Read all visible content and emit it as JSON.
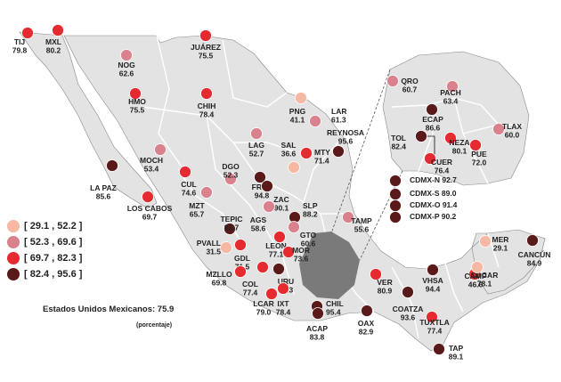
{
  "colors": {
    "land": "#e3e3e3",
    "border": "#ffffff",
    "outline": "#888888",
    "center_region": "#7a7a7a",
    "bins": [
      "#f6b8a2",
      "#d9828e",
      "#e52b2f",
      "#5a1a1a"
    ]
  },
  "legend": {
    "items": [
      {
        "label": "[ 29.1 , 52.2 ]",
        "bin": 0
      },
      {
        "label": "[ 52.3 , 69.6 ]",
        "bin": 1
      },
      {
        "label": "[ 69.7 , 82.3 ]",
        "bin": 2
      },
      {
        "label": "[ 82.4 , 95.6 ]",
        "bin": 3
      }
    ]
  },
  "national": {
    "text": "Estados Unidos Mexicanos: 75.9"
  },
  "unit": {
    "text": "(porcentaje)"
  },
  "cities": [
    {
      "name": "TIJ",
      "value": "79.8",
      "bin": 2
    },
    {
      "name": "MXL",
      "value": "80.2",
      "bin": 2
    },
    {
      "name": "NOG",
      "value": "62.6",
      "bin": 1
    },
    {
      "name": "JUÁREZ",
      "value": "75.5",
      "bin": 2
    },
    {
      "name": "HMO",
      "value": "75.5",
      "bin": 2
    },
    {
      "name": "CHIH",
      "value": "78.4",
      "bin": 2
    },
    {
      "name": "PNG",
      "value": "41.1",
      "bin": 0
    },
    {
      "name": "LAR",
      "value": "61.3",
      "bin": 1
    },
    {
      "name": "REYNOSA",
      "value": "95.6",
      "bin": 3
    },
    {
      "name": "MOCH",
      "value": "53.4",
      "bin": 1
    },
    {
      "name": "LAG",
      "value": "52.7",
      "bin": 1
    },
    {
      "name": "SAL",
      "value": "36.6",
      "bin": 0
    },
    {
      "name": "MTY",
      "value": "71.4",
      "bin": 2
    },
    {
      "name": "CUL",
      "value": "74.6",
      "bin": 2
    },
    {
      "name": "DGO",
      "value": "52.3",
      "bin": 1
    },
    {
      "name": "LA PAZ",
      "value": "85.6",
      "bin": 3
    },
    {
      "name": "LOS CABOS",
      "value": "69.7",
      "bin": 2
    },
    {
      "name": "MZT",
      "value": "65.7",
      "bin": 1
    },
    {
      "name": "FRES",
      "value": "94.8",
      "bin": 3
    },
    {
      "name": "ZAC",
      "value": "90.1",
      "bin": 3
    },
    {
      "name": "SLP",
      "value": "88.2",
      "bin": 3
    },
    {
      "name": "TEPIC",
      "value": "83.7",
      "bin": 3
    },
    {
      "name": "AGS",
      "value": "58.6",
      "bin": 1
    },
    {
      "name": "GTO",
      "value": "60.6",
      "bin": 1
    },
    {
      "name": "TAMP",
      "value": "55.6",
      "bin": 1
    },
    {
      "name": "PVALL",
      "value": "31.5",
      "bin": 0
    },
    {
      "name": "GDL",
      "value": "71.5",
      "bin": 2
    },
    {
      "name": "LEON",
      "value": "77.1",
      "bin": 2
    },
    {
      "name": "MOR",
      "value": "73.6",
      "bin": 2
    },
    {
      "name": "MZLLO",
      "value": "69.8",
      "bin": 2
    },
    {
      "name": "COL",
      "value": "77.4",
      "bin": 2
    },
    {
      "name": "URU",
      "value": "86.3",
      "bin": 3
    },
    {
      "name": "LCAR",
      "value": "79.0",
      "bin": 2
    },
    {
      "name": "IXT",
      "value": "78.4",
      "bin": 2
    },
    {
      "name": "CHIL",
      "value": "95.4",
      "bin": 3
    },
    {
      "name": "ACAP",
      "value": "83.8",
      "bin": 3
    },
    {
      "name": "OAX",
      "value": "82.9",
      "bin": 3
    },
    {
      "name": "VER",
      "value": "80.9",
      "bin": 2
    },
    {
      "name": "VHSA",
      "value": "94.4",
      "bin": 3
    },
    {
      "name": "COATZA",
      "value": "93.6",
      "bin": 3
    },
    {
      "name": "CDCAR",
      "value": "78.1",
      "bin": 2
    },
    {
      "name": "TUXTLA",
      "value": "77.4",
      "bin": 2
    },
    {
      "name": "TAP",
      "value": "89.1",
      "bin": 3
    },
    {
      "name": "CAMP",
      "value": "46.6",
      "bin": 0
    },
    {
      "name": "MER",
      "value": "29.1",
      "bin": 0
    },
    {
      "name": "CANCÚN",
      "value": "84.9",
      "bin": 3
    },
    {
      "name": "QRO",
      "value": "60.7",
      "bin": 1
    },
    {
      "name": "PACH",
      "value": "63.4",
      "bin": 1
    },
    {
      "name": "ECAP",
      "value": "86.6",
      "bin": 3
    },
    {
      "name": "TLAX",
      "value": "60.0",
      "bin": 1
    },
    {
      "name": "TOL",
      "value": "82.4",
      "bin": 3
    },
    {
      "name": "NEZA",
      "value": "80.1",
      "bin": 2
    },
    {
      "name": "CUER",
      "value": "76.4",
      "bin": 2
    },
    {
      "name": "PUE",
      "value": "72.0",
      "bin": 2
    },
    {
      "name": "CDMX-N",
      "value": "92.7",
      "bin": 3
    },
    {
      "name": "CDMX-S",
      "value": "89.0",
      "bin": 3
    },
    {
      "name": "CDMX-O",
      "value": "91.4",
      "bin": 3
    },
    {
      "name": "CDMX-P",
      "value": "90.2",
      "bin": 3
    }
  ]
}
